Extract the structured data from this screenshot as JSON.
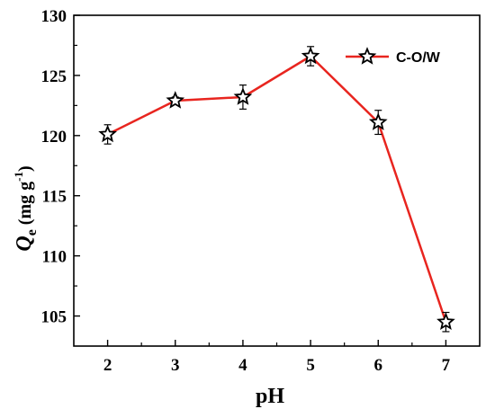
{
  "chart_data": {
    "type": "line",
    "x": [
      2,
      3,
      4,
      5,
      6,
      7
    ],
    "series": [
      {
        "name": "C-O/W",
        "values": [
          120.1,
          122.9,
          123.2,
          126.6,
          121.1,
          104.5
        ],
        "errors": [
          0.8,
          0.3,
          1.0,
          0.8,
          1.0,
          0.8
        ],
        "color": "#e8251f",
        "marker": "star"
      }
    ],
    "xlabel": "pH",
    "ylabel": "Q",
    "ylabel_subscript": "e",
    "ylabel_units_pre": " (mg g",
    "ylabel_units_sup": "-1",
    "ylabel_units_post": ")",
    "xlim": [
      1.5,
      7.5
    ],
    "ylim": [
      102.5,
      130
    ],
    "xticks": [
      2,
      3,
      4,
      5,
      6,
      7
    ],
    "yticks": [
      105,
      110,
      115,
      120,
      125,
      130
    ],
    "grid": false,
    "legend_position": "top-right"
  }
}
